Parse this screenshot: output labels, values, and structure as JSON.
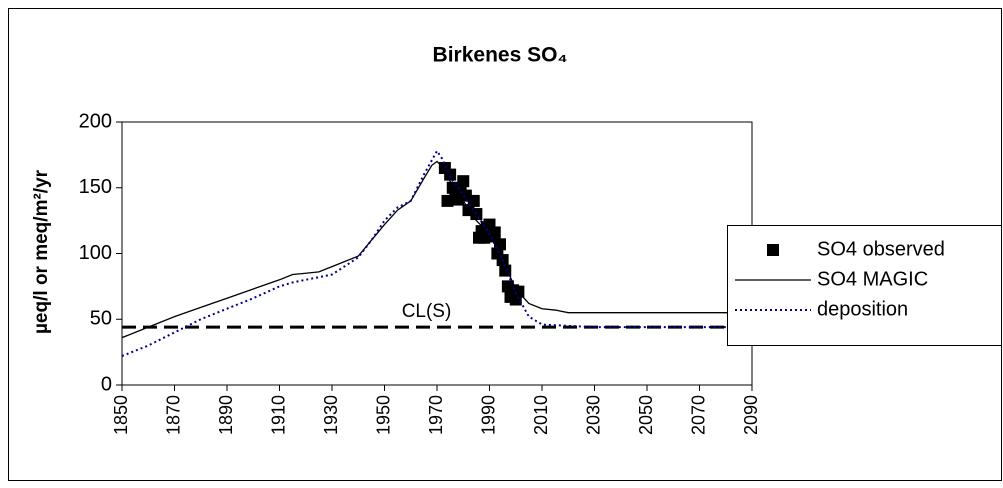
{
  "chart_data": {
    "type": "line",
    "title": "Birkenes SO₄",
    "y_label": "µeq/l or meq/m²/yr",
    "xlim": [
      1850,
      2090
    ],
    "xticks": [
      1850,
      1870,
      1890,
      1910,
      1930,
      1950,
      1970,
      1990,
      2010,
      2030,
      2050,
      2070,
      2090
    ],
    "ylim": [
      0,
      200
    ],
    "yticks": [
      0,
      50,
      100,
      150,
      200
    ],
    "legend": "right",
    "series": [
      {
        "name": "SO4 observed",
        "color": "#000000",
        "marker": "square",
        "line_style": "none",
        "x": [
          1973,
          1974,
          1975,
          1976,
          1977,
          1978,
          1979,
          1980,
          1981,
          1982,
          1984,
          1985,
          1986,
          1987,
          1988,
          1989,
          1990,
          1991,
          1992,
          1993,
          1994,
          1995,
          1996,
          1997,
          1998,
          1999,
          2000,
          2001
        ],
        "values": [
          165,
          140,
          160,
          150,
          143,
          141,
          146,
          155,
          144,
          133,
          140,
          130,
          112,
          117,
          112,
          120,
          122,
          113,
          116,
          100,
          107,
          95,
          87,
          75,
          67,
          72,
          65,
          71
        ]
      },
      {
        "name": "SO4 MAGIC",
        "color": "#000000",
        "marker": "none",
        "line_style": "solid",
        "x": [
          1850,
          1860,
          1870,
          1880,
          1890,
          1900,
          1910,
          1915,
          1920,
          1925,
          1930,
          1940,
          1945,
          1950,
          1955,
          1960,
          1965,
          1968,
          1970,
          1972,
          1975,
          1980,
          1985,
          1990,
          1995,
          2000,
          2005,
          2010,
          2015,
          2020,
          2030,
          2090
        ],
        "values": [
          36,
          44,
          52,
          59,
          66,
          73,
          80,
          84,
          85,
          86,
          90,
          98,
          110,
          122,
          133,
          140,
          157,
          167,
          170,
          166,
          155,
          140,
          125,
          115,
          95,
          73,
          62,
          58,
          57,
          55,
          55,
          55
        ]
      },
      {
        "name": "deposition",
        "color": "#00008b",
        "marker": "none",
        "line_style": "dotted",
        "x": [
          1850,
          1860,
          1870,
          1880,
          1890,
          1900,
          1910,
          1915,
          1920,
          1930,
          1940,
          1945,
          1950,
          1955,
          1960,
          1965,
          1970,
          1972,
          1975,
          1980,
          1985,
          1990,
          1995,
          2000,
          2005,
          2010,
          2020,
          2030,
          2090
        ],
        "values": [
          22,
          30,
          40,
          50,
          58,
          66,
          75,
          78,
          80,
          84,
          97,
          110,
          125,
          135,
          140,
          160,
          178,
          172,
          158,
          145,
          130,
          115,
          95,
          70,
          52,
          46,
          45,
          44,
          44
        ]
      }
    ],
    "reference_lines": [
      {
        "label": "CL(S)",
        "value": 44,
        "color": "#000000",
        "line_style": "dashed"
      }
    ]
  }
}
